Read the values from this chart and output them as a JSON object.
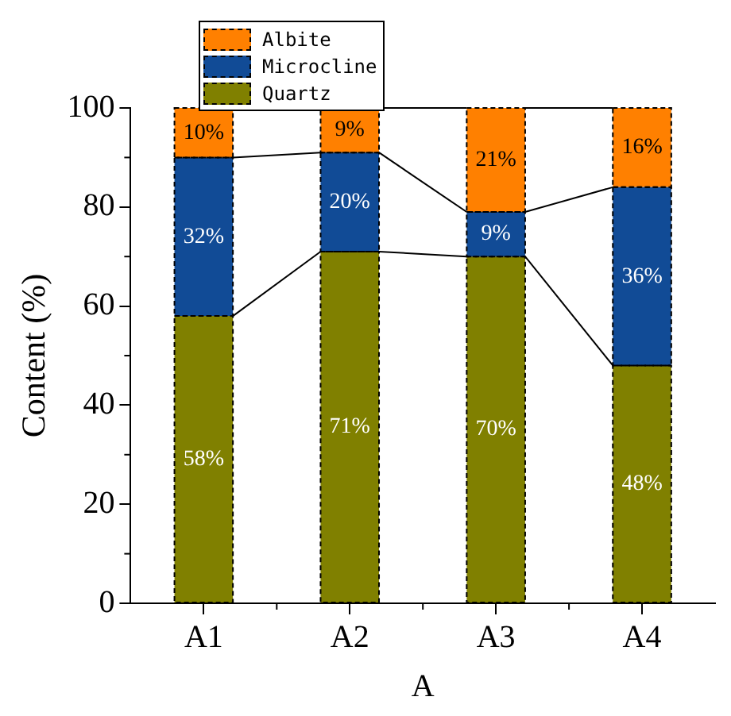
{
  "chart_data": {
    "type": "bar",
    "stacked": true,
    "xlabel": "A",
    "ylabel": "Content (%)",
    "categories": [
      "A1",
      "A2",
      "A3",
      "A4"
    ],
    "series": [
      {
        "name": "Quartz",
        "color": "#808000",
        "values": [
          58,
          71,
          70,
          48
        ],
        "value_labels": [
          "58%",
          "71%",
          "70%",
          "48%"
        ]
      },
      {
        "name": "Microcline",
        "color": "#114b96",
        "values": [
          32,
          20,
          9,
          36
        ],
        "value_labels": [
          "32%",
          "20%",
          "9%",
          "36%"
        ]
      },
      {
        "name": "Albite",
        "color": "#ff8000",
        "values": [
          10,
          9,
          21,
          16
        ],
        "value_labels": [
          "10%",
          "9%",
          "21%",
          "16%"
        ]
      }
    ],
    "ylim": [
      0,
      100
    ],
    "yticks": [
      0,
      20,
      40,
      60,
      80,
      100
    ],
    "legend": "top left",
    "grid": false
  }
}
